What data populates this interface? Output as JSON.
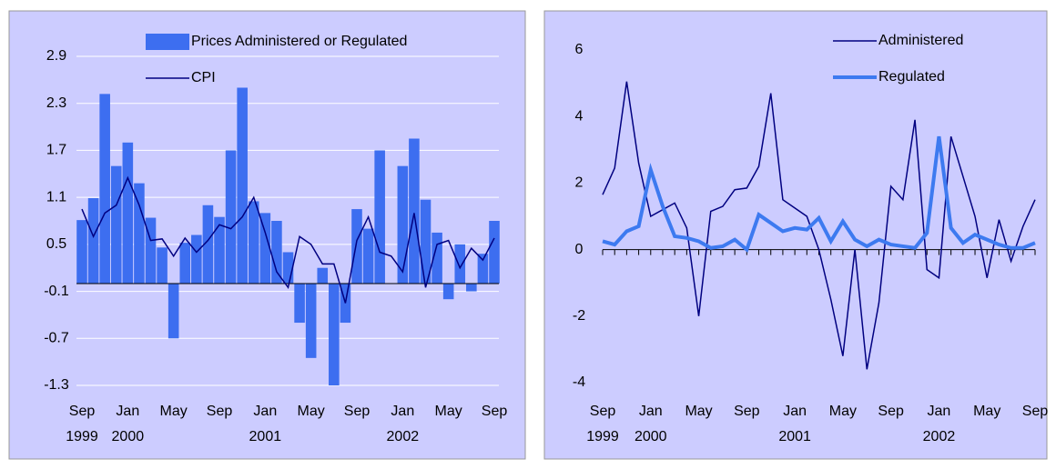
{
  "chart_data": [
    {
      "type": "bar",
      "categories": [
        "Sep 1999",
        null,
        null,
        null,
        "Jan 2000",
        null,
        null,
        null,
        "May",
        null,
        null,
        null,
        "Sep",
        null,
        null,
        null,
        "Jan 2001",
        null,
        null,
        null,
        "May",
        null,
        null,
        null,
        "Sep",
        null,
        null,
        null,
        "Jan 2002",
        null,
        null,
        null,
        "May",
        null,
        null,
        null,
        "Sep"
      ],
      "series": [
        {
          "name": "Prices Administered or Regulated",
          "color": "#3d6ef0",
          "type": "bar",
          "values": [
            0.81,
            1.09,
            2.42,
            1.5,
            1.8,
            1.28,
            0.84,
            0.46,
            -0.7,
            0.52,
            0.62,
            1.0,
            0.85,
            1.7,
            2.5,
            1.05,
            0.9,
            0.8,
            0.4,
            -0.5,
            -0.95,
            0.2,
            -1.3,
            -0.5,
            0.95,
            0.7,
            1.7,
            0,
            1.5,
            1.85,
            1.07,
            0.65,
            -0.2,
            0.5,
            -0.1,
            0.38,
            0.8
          ]
        },
        {
          "name": "CPI",
          "color": "#000080",
          "type": "line",
          "values": [
            0.95,
            0.6,
            0.9,
            1.0,
            1.35,
            1.0,
            0.55,
            0.57,
            0.35,
            0.58,
            0.4,
            0.55,
            0.75,
            0.7,
            0.85,
            1.1,
            0.65,
            0.15,
            -0.05,
            0.6,
            0.5,
            0.25,
            0.25,
            -0.25,
            0.55,
            0.85,
            0.4,
            0.35,
            0.15,
            0.9,
            -0.05,
            0.5,
            0.55,
            0.2,
            0.45,
            0.3,
            0.58
          ]
        }
      ],
      "ylim": [
        -1.3,
        2.9
      ],
      "yticks": [
        -1.3,
        -0.7,
        -0.1,
        0.5,
        1.1,
        1.7,
        2.3,
        2.9
      ],
      "grid": true,
      "legend": "top"
    },
    {
      "type": "line",
      "categories": [
        "Sep 1999",
        null,
        null,
        null,
        "Jan 2000",
        null,
        null,
        null,
        "May",
        null,
        null,
        null,
        "Sep",
        null,
        null,
        null,
        "Jan 2001",
        null,
        null,
        null,
        "May",
        null,
        null,
        null,
        "Sep",
        null,
        null,
        null,
        "Jan 2002",
        null,
        null,
        null,
        "May",
        null,
        null,
        null,
        "Sep"
      ],
      "series": [
        {
          "name": "Administered",
          "color": "#000080",
          "width": 1.5,
          "values": [
            1.65,
            2.45,
            5.05,
            2.6,
            1.0,
            1.2,
            1.4,
            0.65,
            -2.0,
            1.15,
            1.3,
            1.8,
            1.85,
            2.5,
            4.7,
            1.5,
            1.25,
            1.0,
            0,
            -1.5,
            -3.2,
            0,
            -3.6,
            -1.6,
            1.9,
            1.5,
            3.9,
            -0.6,
            -0.85,
            3.4,
            2.2,
            1.0,
            -0.85,
            0.9,
            -0.35,
            0.7,
            1.5
          ]
        },
        {
          "name": "Regulated",
          "color": "#3d7af0",
          "width": 4,
          "values": [
            0.25,
            0.15,
            0.55,
            0.7,
            2.4,
            1.3,
            0.4,
            0.35,
            0.25,
            0.05,
            0.1,
            0.3,
            0.0,
            1.05,
            0.8,
            0.55,
            0.65,
            0.6,
            0.95,
            0.25,
            0.85,
            0.3,
            0.1,
            0.3,
            0.15,
            0.1,
            0.05,
            0.5,
            3.4,
            0.65,
            0.2,
            0.45,
            0.3,
            0.15,
            0.05,
            0.05,
            0.2
          ]
        }
      ],
      "ylim": [
        -4,
        6
      ],
      "yticks": [
        -4,
        -2,
        0,
        2,
        4,
        6
      ],
      "grid": false,
      "legend": "top-right"
    }
  ]
}
